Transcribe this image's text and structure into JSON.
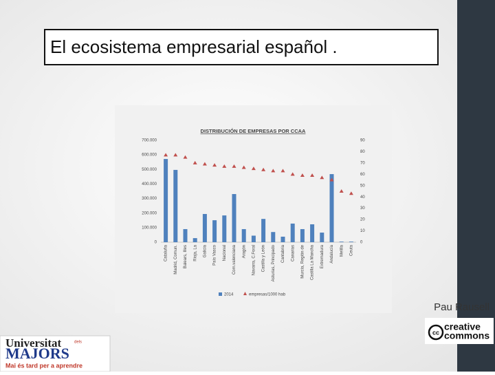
{
  "slide": {
    "title": "El ecosistema empresarial español .",
    "author": "Pau Rausell",
    "license": [
      "creative",
      "commons"
    ],
    "logo": {
      "name": "Universitat",
      "name_small": "dels",
      "name_2": "MAJORS",
      "tagline": "Mai és tard per a aprendre"
    }
  },
  "chart_data": {
    "type": "bar",
    "title": "DISTRIBUCIÓN DE EMPRESAS POR CCAA",
    "categories": [
      "Cataluña",
      "Madrid, Comun.",
      "Balears, Illes",
      "Rioja, La",
      "Galicia",
      "País Vasco",
      "Nacional",
      "Com.valenciana",
      "Aragón",
      "Navarra, C.Foral",
      "Castilla y León",
      "Asturias, Principado",
      "Cantabria",
      "Canarias",
      "Murcia, Región de",
      "Castilla La Mancha",
      "Extremadura",
      "Andalucía",
      "Melilla",
      "Ceuta"
    ],
    "series": [
      {
        "name": "2014",
        "color": "#4f81bd",
        "type": "bar",
        "values": [
          572000,
          497000,
          90000,
          28000,
          194000,
          151000,
          184000,
          331000,
          90000,
          45000,
          160000,
          70000,
          38000,
          128000,
          90000,
          123000,
          66000,
          468000,
          4000,
          4000
        ]
      },
      {
        "name": "empresas/1000 hab",
        "color": "#c0504d",
        "type": "scatter",
        "marker": "triangle",
        "axis": "y2",
        "values": [
          77,
          77,
          75,
          70,
          69,
          68,
          67,
          67,
          66,
          65,
          64,
          63,
          63,
          60,
          59,
          59,
          57,
          55,
          45,
          43
        ]
      }
    ],
    "ylim": [
      0,
      700000
    ],
    "yticks": [
      {
        "value": 0,
        "label": "0"
      },
      {
        "value": 100000,
        "label": "100.000"
      },
      {
        "value": 200000,
        "label": "200.000"
      },
      {
        "value": 300000,
        "label": "300.000"
      },
      {
        "value": 400000,
        "label": "400.000"
      },
      {
        "value": 500000,
        "label": "500.000"
      },
      {
        "value": 600000,
        "label": "600.000"
      },
      {
        "value": 700000,
        "label": "700.000"
      }
    ],
    "y2lim": [
      0,
      90
    ],
    "y2ticks": [
      0,
      10,
      20,
      30,
      40,
      50,
      60,
      70,
      80,
      90
    ],
    "grid": false,
    "legend": "bottom"
  }
}
